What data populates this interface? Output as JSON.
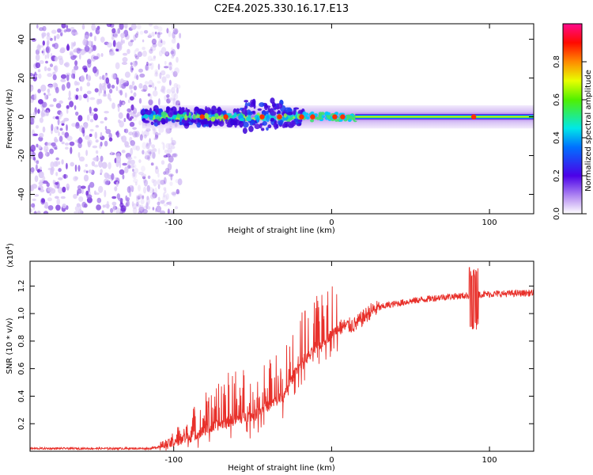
{
  "title": "C2E4.2025.330.16.17.E13",
  "colors": {
    "snr_line": "#e8302a",
    "band_outer": "#e6d8f8",
    "band_mid": "#b691ee",
    "band_inner": "#6a1ed8",
    "scatter_light": "#d9c6f6",
    "scatter_mid": "#9b6be8",
    "scatter_dark": "#6a20d8"
  },
  "chart_data": [
    {
      "type": "heatmap",
      "name": "spectrogram",
      "xlabel": "Height of straight line (km)",
      "ylabel": "Frequency (Hz)",
      "xlim": [
        -191,
        128
      ],
      "ylim": [
        -50,
        48
      ],
      "xticks": [
        -100,
        0,
        100
      ],
      "yticks": [
        -40,
        -20,
        0,
        20,
        40
      ],
      "noise_region_x": [
        -191,
        -106
      ],
      "signal_band": {
        "x_start": -120,
        "x_end": 128,
        "center_hz": 0,
        "core_start_x": 15,
        "peaks_x": [
          -82,
          -67,
          -44,
          -33,
          -19,
          -12,
          2,
          7,
          90
        ]
      },
      "colorbar": {
        "label": "Normalized spectral amplitude",
        "range": [
          0,
          1
        ],
        "ticks": [
          0.0,
          0.2,
          0.4,
          0.6,
          0.8
        ],
        "tick_labels": [
          "0.0",
          "0.2",
          "0.4",
          "0.6",
          "0.8"
        ]
      }
    },
    {
      "type": "line",
      "name": "snr",
      "xlabel": "Height of straight line (km)",
      "ylabel": "SNR (10 * v/v)",
      "scale_label": "(x10",
      "scale_exponent": "4",
      "xlim": [
        -191,
        128
      ],
      "ylim": [
        0,
        1.38
      ],
      "xticks": [
        -100,
        0,
        100
      ],
      "yticks": [
        0.2,
        0.4,
        0.6,
        0.8,
        1.0,
        1.2
      ],
      "ytick_labels": [
        "0.2",
        "0.4",
        "0.6",
        "0.8",
        "1.0",
        "1.2"
      ],
      "baseline_points": [
        [
          -191,
          0.02
        ],
        [
          -115,
          0.02
        ],
        [
          -105,
          0.04
        ],
        [
          -90,
          0.1
        ],
        [
          -70,
          0.2
        ],
        [
          -50,
          0.26
        ],
        [
          -40,
          0.33
        ],
        [
          -30,
          0.4
        ],
        [
          -22,
          0.6
        ],
        [
          -12,
          0.72
        ],
        [
          -5,
          0.8
        ],
        [
          5,
          0.9
        ],
        [
          15,
          0.92
        ],
        [
          25,
          1.02
        ],
        [
          35,
          1.06
        ],
        [
          50,
          1.09
        ],
        [
          70,
          1.12
        ],
        [
          85,
          1.13
        ],
        [
          95,
          1.14
        ],
        [
          128,
          1.15
        ]
      ],
      "spike_region": [
        -110,
        5
      ],
      "notable_excursion": {
        "x": 90,
        "max": 1.35,
        "min": 0.88
      }
    }
  ]
}
